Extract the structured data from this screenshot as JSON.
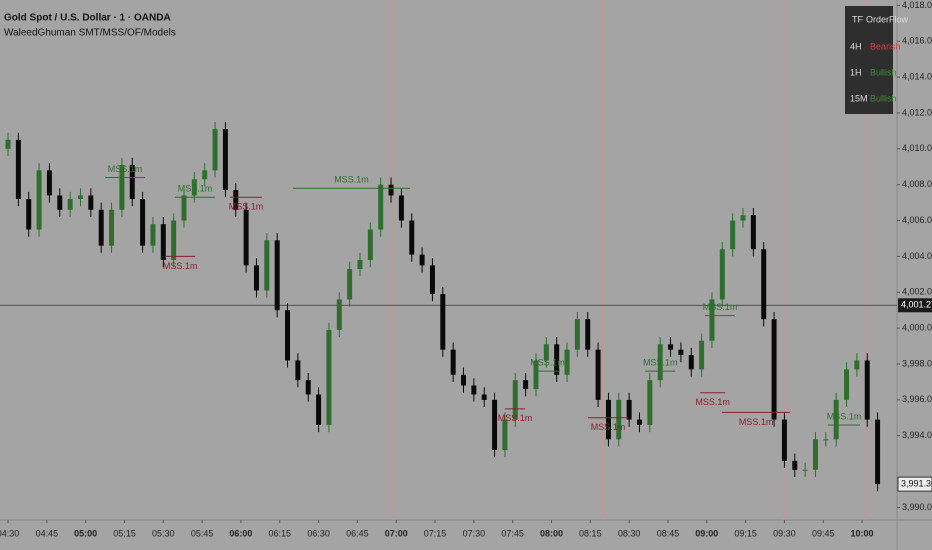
{
  "chart_data": {
    "type": "candlestick",
    "title": "Gold Spot / U.S. Dollar · 1 · OANDA",
    "subtitle": "WaleedGhuman SMT/MSS/OF/Models",
    "up_color": "#2f6e2f",
    "down_color": "#0a0a0a",
    "x": [
      270,
      274,
      278,
      282,
      286,
      290,
      294,
      298,
      302,
      306,
      310,
      314,
      318,
      322,
      326,
      330,
      334,
      338,
      342,
      346,
      350,
      354,
      358,
      362,
      366,
      370,
      374,
      378,
      382,
      386,
      390,
      394,
      398,
      402,
      406,
      410,
      414,
      418,
      422,
      426,
      430,
      434,
      438,
      442,
      446,
      450,
      454,
      458,
      462,
      466,
      470,
      474,
      478,
      482,
      486,
      490,
      494,
      498,
      502,
      506,
      510,
      514,
      518,
      522,
      526,
      530,
      534,
      538,
      542,
      546,
      550,
      554,
      558,
      562,
      566,
      570,
      574,
      578,
      582,
      586,
      590,
      594,
      598,
      602,
      606
    ],
    "open": [
      4010.0,
      4010.5,
      4007.2,
      4005.5,
      4008.8,
      4007.4,
      4006.6,
      4007.2,
      4007.4,
      4006.6,
      4004.6,
      4006.6,
      4009.1,
      4007.2,
      4004.6,
      4005.8,
      4003.8,
      4006.0,
      4007.4,
      4008.3,
      4008.8,
      4011.1,
      4007.7,
      4006.6,
      4003.5,
      4002.1,
      4004.9,
      4001.0,
      3998.2,
      3997.1,
      3996.3,
      3994.6,
      3999.9,
      4001.6,
      4003.3,
      4003.8,
      4005.5,
      4008.0,
      4007.4,
      4006.0,
      4004.1,
      4003.5,
      4001.9,
      3998.8,
      3997.4,
      3996.8,
      3996.3,
      3996.0,
      3993.2,
      3994.9,
      3997.1,
      3996.6,
      3998.2,
      3999.1,
      3997.4,
      3998.8,
      4000.5,
      3998.8,
      3996.0,
      3993.8,
      3996.0,
      3994.9,
      3994.6,
      3997.1,
      3999.1,
      3998.8,
      3998.5,
      3997.7,
      3999.3,
      4001.6,
      4004.4,
      4006.0,
      4006.3,
      4004.4,
      4000.5,
      3994.9,
      3992.6,
      3992.1,
      3992.1,
      3993.8,
      3993.8,
      3996.0,
      3997.7,
      3998.2,
      3994.9
    ],
    "high": [
      4010.9,
      4010.9,
      4007.6,
      4009.2,
      4009.2,
      4007.8,
      4007.6,
      4007.8,
      4007.8,
      4007.0,
      4007.0,
      4009.5,
      4009.5,
      4007.6,
      4006.2,
      4006.2,
      4006.4,
      4007.8,
      4008.7,
      4009.2,
      4011.5,
      4011.5,
      4008.1,
      4007.0,
      4003.9,
      4005.3,
      4005.3,
      4001.4,
      3998.6,
      3997.5,
      3996.7,
      4000.3,
      4002.0,
      4003.7,
      4004.2,
      4005.9,
      4008.4,
      4008.4,
      4007.8,
      4006.4,
      4004.5,
      4003.9,
      4002.3,
      3999.2,
      3997.8,
      3997.2,
      3996.7,
      3996.4,
      3995.3,
      3997.5,
      3997.5,
      3998.6,
      3999.5,
      3999.5,
      3999.2,
      4000.9,
      4000.9,
      3999.2,
      3996.4,
      3996.4,
      3996.4,
      3995.3,
      3997.5,
      3999.5,
      3999.5,
      3999.2,
      3998.9,
      3999.7,
      4002.0,
      4004.8,
      4006.4,
      4006.7,
      4006.7,
      4004.8,
      4000.9,
      3995.3,
      3993.0,
      3992.5,
      3994.2,
      3994.2,
      3996.4,
      3998.1,
      3998.6,
      3998.6,
      3995.3
    ],
    "low": [
      4009.6,
      4006.8,
      4005.1,
      4005.1,
      4007.0,
      4006.2,
      4006.2,
      4006.8,
      4006.2,
      4004.2,
      4004.2,
      4006.2,
      4006.8,
      4004.2,
      4004.2,
      4003.4,
      4003.4,
      4005.6,
      4007.0,
      4007.9,
      4008.4,
      4007.3,
      4006.2,
      4003.1,
      4001.7,
      4001.7,
      4000.6,
      3997.8,
      3996.7,
      3995.9,
      3994.2,
      3994.2,
      3999.5,
      4001.2,
      4002.9,
      4003.4,
      4005.1,
      4007.0,
      4005.6,
      4003.7,
      4003.1,
      4001.5,
      3998.4,
      3997.0,
      3996.4,
      3995.9,
      3995.6,
      3992.8,
      3992.8,
      3994.5,
      3996.2,
      3996.2,
      3997.8,
      3997.0,
      3997.0,
      3998.4,
      3998.4,
      3995.6,
      3993.4,
      3993.4,
      3994.5,
      3994.2,
      3994.2,
      3996.7,
      3998.4,
      3998.1,
      3997.3,
      3997.3,
      3998.9,
      4001.2,
      4004.0,
      4005.6,
      4004.0,
      4000.1,
      3994.5,
      3992.2,
      3991.7,
      3991.7,
      3991.7,
      3993.4,
      3993.4,
      3995.6,
      3997.3,
      3994.5,
      3990.9
    ],
    "close": [
      4010.5,
      4007.2,
      4005.5,
      4008.8,
      4007.4,
      4006.6,
      4007.2,
      4007.4,
      4006.6,
      4004.6,
      4006.6,
      4009.1,
      4007.2,
      4004.6,
      4005.8,
      4003.8,
      4006.0,
      4007.4,
      4008.3,
      4008.8,
      4011.1,
      4007.7,
      4006.6,
      4003.5,
      4002.1,
      4004.9,
      4001.0,
      3998.2,
      3997.1,
      3996.3,
      3994.6,
      3999.9,
      4001.6,
      4003.3,
      4003.8,
      4005.5,
      4008.0,
      4007.4,
      4006.0,
      4004.1,
      4003.5,
      4001.9,
      3998.8,
      3997.4,
      3996.8,
      3996.3,
      3996.0,
      3993.2,
      3994.9,
      3997.1,
      3996.6,
      3998.2,
      3999.1,
      3997.4,
      3998.8,
      4000.5,
      3998.8,
      3996.0,
      3993.8,
      3996.0,
      3994.9,
      3994.6,
      3997.1,
      3999.1,
      3998.8,
      3998.5,
      3997.7,
      3999.3,
      4001.6,
      4004.4,
      4006.0,
      4006.3,
      4004.4,
      4000.5,
      3994.9,
      3992.6,
      3992.1,
      3992.1,
      3993.8,
      3993.8,
      3996.0,
      3997.7,
      3998.2,
      3994.9,
      3991.3
    ],
    "xlim": [
      266.9,
      613.5
    ],
    "ylim": [
      3989.3,
      4018.3
    ],
    "xticks": [
      {
        "value": 270,
        "label": "04:30"
      },
      {
        "value": 285,
        "label": "04:45"
      },
      {
        "value": 300,
        "label": "05:00"
      },
      {
        "value": 315,
        "label": "05:15"
      },
      {
        "value": 330,
        "label": "05:30"
      },
      {
        "value": 345,
        "label": "05:45"
      },
      {
        "value": 360,
        "label": "06:00"
      },
      {
        "value": 375,
        "label": "06:15"
      },
      {
        "value": 390,
        "label": "06:30"
      },
      {
        "value": 405,
        "label": "06:45"
      },
      {
        "value": 420,
        "label": "07:00"
      },
      {
        "value": 435,
        "label": "07:15"
      },
      {
        "value": 450,
        "label": "07:30"
      },
      {
        "value": 465,
        "label": "07:45"
      },
      {
        "value": 480,
        "label": "08:00"
      },
      {
        "value": 495,
        "label": "08:15"
      },
      {
        "value": 510,
        "label": "08:30"
      },
      {
        "value": 525,
        "label": "08:45"
      },
      {
        "value": 540,
        "label": "09:00"
      },
      {
        "value": 555,
        "label": "09:15"
      },
      {
        "value": 570,
        "label": "09:30"
      },
      {
        "value": 585,
        "label": "09:45"
      },
      {
        "value": 600,
        "label": "10:00"
      }
    ],
    "yticks": [
      {
        "value": 4018,
        "label": "4,018.000"
      },
      {
        "value": 4016,
        "label": "4,016.000"
      },
      {
        "value": 4014,
        "label": "4,014.000"
      },
      {
        "value": 4012,
        "label": "4,012.000"
      },
      {
        "value": 4010,
        "label": "4,010.000"
      },
      {
        "value": 4008,
        "label": "4,008.000"
      },
      {
        "value": 4006,
        "label": "4,006.000"
      },
      {
        "value": 4004,
        "label": "4,004.000"
      },
      {
        "value": 4002,
        "label": "4,002.000"
      },
      {
        "value": 4000,
        "label": "4,000.000"
      },
      {
        "value": 3998,
        "label": "3,998.000"
      },
      {
        "value": 3996,
        "label": "3,996.000"
      },
      {
        "value": 3994,
        "label": "3,994.000"
      },
      {
        "value": 3990,
        "label": "3,990.000"
      }
    ],
    "price_line": {
      "value": 4001.275,
      "label": "4,001.275"
    },
    "last_price": {
      "value": 3991.3,
      "label": "3,991.305"
    },
    "session_lines": [
      418.8,
      499.9,
      569.8,
      601.5
    ],
    "session_color": "#e08a8a",
    "annotations": [
      {
        "text": "MSS.1m",
        "price": 4008.4,
        "x": [
          307.5,
          322.9
        ],
        "color": "#2f6e2f"
      },
      {
        "text": "MSS.1m",
        "price": 4004.0,
        "x": [
          330.7,
          342.3
        ],
        "color": "#8b1e2e"
      },
      {
        "text": "MSS.1m",
        "price": 4007.3,
        "x": [
          334.5,
          350.0
        ],
        "color": "#2f6e2f"
      },
      {
        "text": "MSS.1m",
        "price": 4007.3,
        "x": [
          355.8,
          368.1
        ],
        "color": "#8b1e2e"
      },
      {
        "text": "MSS.1m",
        "price": 4007.8,
        "x": [
          380.1,
          425.3
        ],
        "color": "#2f6e2f"
      },
      {
        "text": "MSS.1m",
        "price": 3995.5,
        "x": [
          462.0,
          469.8
        ],
        "color": "#8b1e2e"
      },
      {
        "text": "MSS.1m",
        "price": 3997.6,
        "x": [
          473.6,
          483.3
        ],
        "color": "#2f6e2f"
      },
      {
        "text": "MSS.1m",
        "price": 3995.0,
        "x": [
          494.1,
          509.6
        ],
        "color": "#8b1e2e"
      },
      {
        "text": "MSS.1m",
        "price": 3997.6,
        "x": [
          516.2,
          527.8
        ],
        "color": "#2f6e2f"
      },
      {
        "text": "MSS.1m",
        "price": 4000.7,
        "x": [
          539.3,
          550.9
        ],
        "color": "#2f6e2f"
      },
      {
        "text": "MSS.1m",
        "price": 3996.4,
        "x": [
          537.4,
          547.1
        ],
        "color": "#8b1e2e"
      },
      {
        "text": "MSS.1m",
        "price": 3995.3,
        "x": [
          545.9,
          572.2
        ],
        "color": "#8b1e2e"
      },
      {
        "text": "MSS.1m",
        "price": 3994.6,
        "x": [
          586.8,
          599.2
        ],
        "color": "#2f6e2f"
      }
    ],
    "table": {
      "header": [
        "TF",
        "OrderFlow"
      ],
      "rows": [
        {
          "tf": "4H",
          "flow": "Bearish",
          "color": "#d04040"
        },
        {
          "tf": "1H",
          "flow": "Bullish",
          "color": "#3c8c3c"
        },
        {
          "tf": "15M",
          "flow": "Bullish",
          "color": "#3c8c3c"
        }
      ]
    }
  }
}
